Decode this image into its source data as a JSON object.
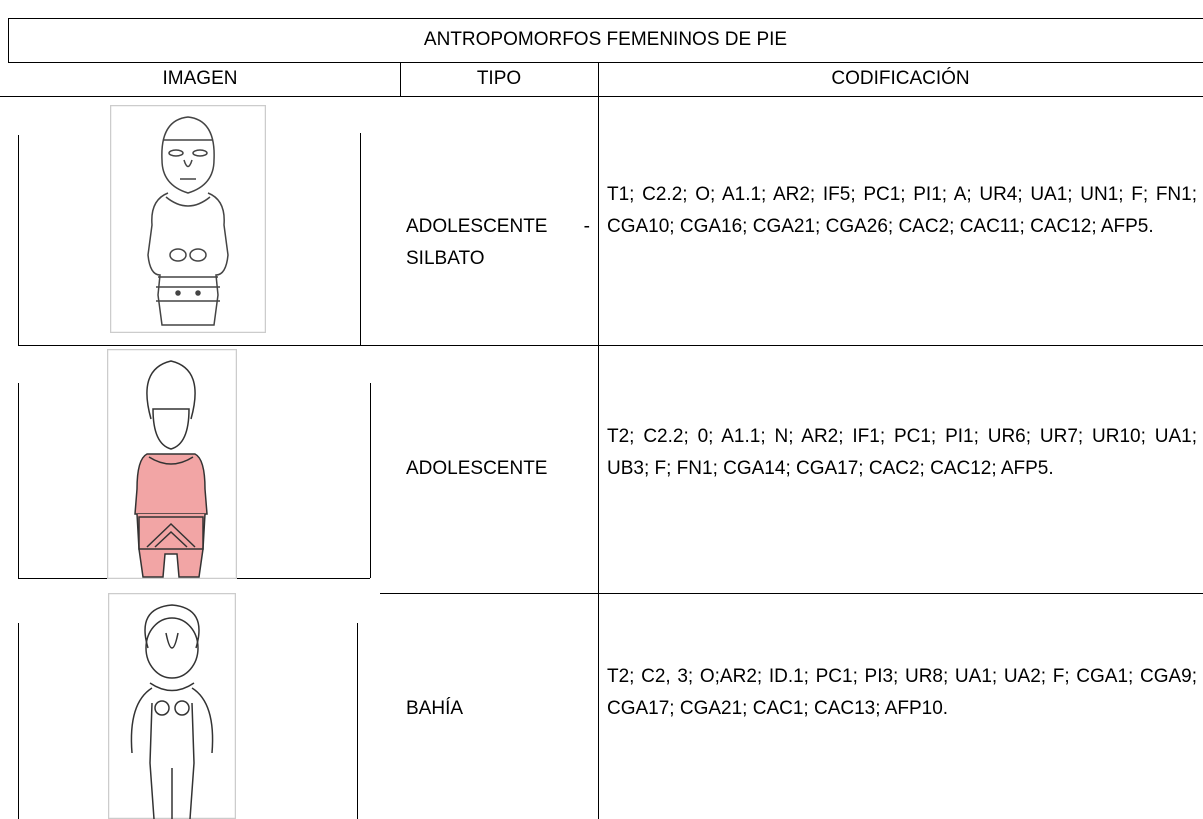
{
  "table": {
    "title": "ANTROPOMORFOS FEMENINOS DE PIE",
    "columns": [
      "IMAGEN",
      "TIPO",
      "CODIFICACIÓN"
    ],
    "rows": [
      {
        "tipo": "ADOLESCENTE - SILBATO",
        "codificacion": "T1; C2.2; O; A1.1; AR2; IF5; PC1; PI1; A; UR4; UA1; UN1; F; FN1; CGA10; CGA16; CGA21; CGA26; CAC2; CAC11; CAC12; AFP5."
      },
      {
        "tipo": "ADOLESCENTE",
        "codificacion": "T2; C2.2; 0; A1.1; N; AR2; IF1; PC1; PI1; UR6; UR7; UR10; UA1; UB3; F; FN1; CGA14; CGA17; CAC2; CAC12; AFP5."
      },
      {
        "tipo": "BAHÍA",
        "codificacion": "T2; C2, 3; O;AR2; ID.1; PC1; PI3; UR8; UA1; UA2; F; CGA1; CGA9; CGA17; CGA21; CAC1; CAC13; AFP10."
      }
    ]
  }
}
